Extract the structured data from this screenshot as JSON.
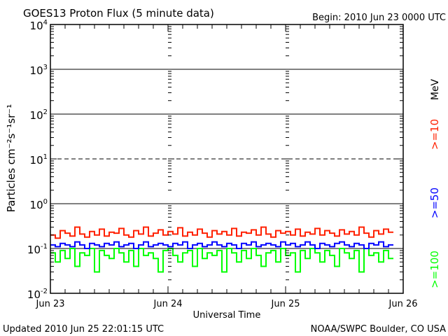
{
  "chart_data": {
    "type": "line",
    "title": "GOES13 Proton Flux (5 minute data)",
    "begin_label": "Begin: 2010 Jun 23 0000 UTC",
    "xlabel": "Universal Time",
    "ylabel": "Particles cm⁻²s⁻¹sr⁻¹",
    "x_unit": "hours since 2010 Jun 23 0000 UTC",
    "xlim": [
      0,
      72
    ],
    "x_ticks": [
      {
        "value": 0,
        "label": "Jun 23"
      },
      {
        "value": 24,
        "label": "Jun 24"
      },
      {
        "value": 48,
        "label": "Jun 25"
      },
      {
        "value": 72,
        "label": "Jun 26"
      }
    ],
    "yscale": "log",
    "ylim": [
      0.01,
      10000
    ],
    "y_ticks": [
      {
        "exp": 4,
        "label": "10",
        "sup": "4"
      },
      {
        "exp": 3,
        "label": "10",
        "sup": "3"
      },
      {
        "exp": 2,
        "label": "10",
        "sup": "2"
      },
      {
        "exp": 1,
        "label": "10",
        "sup": "1"
      },
      {
        "exp": 0,
        "label": "10",
        "sup": "0"
      },
      {
        "exp": -1,
        "label": "10",
        "sup": "-1"
      },
      {
        "exp": -2,
        "label": "10",
        "sup": "-2"
      }
    ],
    "unit_label": "MeV",
    "series": [
      {
        "name": ">=100",
        "color": "#00ff00",
        "values": [
          0.08,
          0.05,
          0.09,
          0.06,
          0.1,
          0.04,
          0.08,
          0.07,
          0.1,
          0.03,
          0.09,
          0.07,
          0.06,
          0.1,
          0.08,
          0.05,
          0.09,
          0.04,
          0.1,
          0.07,
          0.08,
          0.06,
          0.03,
          0.09,
          0.1,
          0.07,
          0.05,
          0.08,
          0.09,
          0.04,
          0.1,
          0.06,
          0.08,
          0.07,
          0.09,
          0.03,
          0.1,
          0.08,
          0.05,
          0.09,
          0.06,
          0.1,
          0.07,
          0.04,
          0.08,
          0.09,
          0.05,
          0.1,
          0.07,
          0.08,
          0.03,
          0.09,
          0.06,
          0.1,
          0.08,
          0.05,
          0.09,
          0.07,
          0.04,
          0.1,
          0.08,
          0.06,
          0.09,
          0.03,
          0.1,
          0.07,
          0.08,
          0.05,
          0.09,
          0.06
        ]
      },
      {
        "name": ">=50",
        "color": "#0000ff",
        "values": [
          0.12,
          0.11,
          0.13,
          0.12,
          0.11,
          0.14,
          0.12,
          0.1,
          0.13,
          0.12,
          0.11,
          0.13,
          0.12,
          0.14,
          0.11,
          0.12,
          0.13,
          0.1,
          0.12,
          0.14,
          0.11,
          0.12,
          0.13,
          0.12,
          0.11,
          0.13,
          0.12,
          0.14,
          0.1,
          0.12,
          0.13,
          0.11,
          0.12,
          0.14,
          0.12,
          0.11,
          0.13,
          0.12,
          0.1,
          0.13,
          0.12,
          0.14,
          0.11,
          0.12,
          0.13,
          0.12,
          0.11,
          0.14,
          0.12,
          0.13,
          0.11,
          0.12,
          0.14,
          0.12,
          0.1,
          0.13,
          0.12,
          0.11,
          0.13,
          0.14,
          0.12,
          0.11,
          0.13,
          0.12,
          0.1,
          0.13,
          0.12,
          0.14,
          0.11,
          0.12
        ]
      },
      {
        "name": ">=10",
        "color": "#ff2000",
        "values": [
          0.2,
          0.17,
          0.25,
          0.22,
          0.19,
          0.3,
          0.21,
          0.18,
          0.24,
          0.2,
          0.27,
          0.19,
          0.23,
          0.22,
          0.28,
          0.2,
          0.18,
          0.25,
          0.21,
          0.3,
          0.19,
          0.22,
          0.26,
          0.2,
          0.24,
          0.21,
          0.29,
          0.19,
          0.23,
          0.2,
          0.27,
          0.22,
          0.18,
          0.25,
          0.21,
          0.24,
          0.2,
          0.28,
          0.19,
          0.23,
          0.22,
          0.26,
          0.2,
          0.3,
          0.21,
          0.18,
          0.25,
          0.22,
          0.24,
          0.2,
          0.27,
          0.19,
          0.23,
          0.21,
          0.28,
          0.2,
          0.25,
          0.22,
          0.19,
          0.26,
          0.21,
          0.24,
          0.2,
          0.3,
          0.22,
          0.18,
          0.25,
          0.21,
          0.27,
          0.23
        ]
      }
    ]
  },
  "footer": {
    "updated": "Updated 2010 Jun 25 22:01:15 UTC",
    "credit": "NOAA/SWPC Boulder, CO USA"
  }
}
